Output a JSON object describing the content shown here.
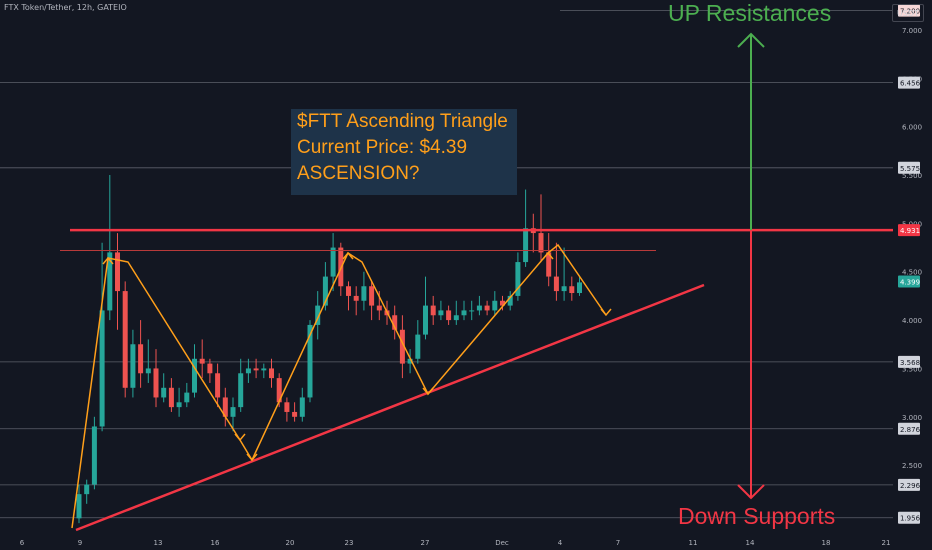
{
  "header": {
    "symbol": "FTX Token/Tether, 12h, GATEIO",
    "currency": "USDT"
  },
  "annotation": {
    "line1": "$FTT Ascending Triangle",
    "line2": "Current Price: $4.39",
    "line3": "ASCENSION?"
  },
  "labels": {
    "up": "UP Resistances",
    "down": "Down Supports"
  },
  "colors": {
    "bg": "#131722",
    "up": "#26a69a",
    "down": "#ef5350",
    "resistance": "#f23645",
    "orange": "#ff9f1a",
    "green": "#4caf50"
  },
  "chart_data": {
    "type": "candlestick",
    "symbol": "FTT/USDT",
    "timeframe": "12h",
    "exchange": "GATEIO",
    "xaxis_ticks": [
      "6",
      "9",
      "13",
      "16",
      "20",
      "23",
      "27",
      "Dec",
      "4",
      "7",
      "11",
      "14",
      "18",
      "21"
    ],
    "yaxis_ticks": [
      "2.500",
      "3.000",
      "3.500",
      "4.000",
      "4.500",
      "5.000",
      "5.500",
      "6.000",
      "6.500",
      "7.000"
    ],
    "ylim": [
      1.85,
      7.45
    ],
    "price_labels": [
      {
        "value": "7.200",
        "kind": "level"
      },
      {
        "value": "6.456",
        "kind": "level"
      },
      {
        "value": "5.575",
        "kind": "level"
      },
      {
        "value": "4.931",
        "kind": "resistance"
      },
      {
        "value": "4.399",
        "kind": "current"
      },
      {
        "value": "3.568",
        "kind": "level"
      },
      {
        "value": "2.876",
        "kind": "level"
      },
      {
        "value": "2.296",
        "kind": "level"
      },
      {
        "value": "1.956",
        "kind": "level"
      }
    ],
    "candles": [
      [
        1.95,
        2.2,
        1.9,
        2.3
      ],
      [
        2.2,
        2.3,
        2.1,
        2.35
      ],
      [
        2.3,
        2.9,
        2.25,
        3.0
      ],
      [
        2.9,
        4.1,
        2.85,
        4.8
      ],
      [
        4.1,
        4.7,
        4.0,
        5.5
      ],
      [
        4.7,
        4.3,
        3.9,
        4.9
      ],
      [
        4.3,
        3.3,
        3.2,
        4.4
      ],
      [
        3.3,
        3.75,
        3.2,
        3.9
      ],
      [
        3.75,
        3.45,
        3.3,
        4.0
      ],
      [
        3.45,
        3.5,
        3.35,
        3.8
      ],
      [
        3.5,
        3.2,
        3.1,
        3.7
      ],
      [
        3.2,
        3.3,
        3.15,
        3.45
      ],
      [
        3.3,
        3.1,
        3.05,
        3.4
      ],
      [
        3.1,
        3.15,
        3.0,
        3.3
      ],
      [
        3.15,
        3.25,
        3.1,
        3.35
      ],
      [
        3.25,
        3.6,
        3.2,
        3.75
      ],
      [
        3.6,
        3.55,
        3.4,
        3.8
      ],
      [
        3.55,
        3.45,
        3.35,
        3.6
      ],
      [
        3.45,
        3.2,
        3.1,
        3.55
      ],
      [
        3.2,
        3.0,
        2.9,
        3.3
      ],
      [
        3.0,
        3.1,
        2.85,
        3.2
      ],
      [
        3.1,
        3.45,
        3.05,
        3.6
      ],
      [
        3.45,
        3.5,
        3.35,
        3.6
      ],
      [
        3.5,
        3.48,
        3.4,
        3.6
      ],
      [
        3.48,
        3.5,
        3.4,
        3.55
      ],
      [
        3.5,
        3.4,
        3.3,
        3.6
      ],
      [
        3.4,
        3.15,
        3.1,
        3.45
      ],
      [
        3.15,
        3.05,
        2.95,
        3.2
      ],
      [
        3.05,
        3.0,
        2.95,
        3.15
      ],
      [
        3.0,
        3.2,
        2.95,
        3.3
      ],
      [
        3.2,
        3.95,
        3.15,
        4.0
      ],
      [
        3.95,
        4.15,
        3.8,
        4.3
      ],
      [
        4.15,
        4.45,
        4.1,
        4.6
      ],
      [
        4.45,
        4.75,
        4.3,
        4.9
      ],
      [
        4.75,
        4.35,
        4.25,
        4.8
      ],
      [
        4.35,
        4.25,
        4.1,
        4.4
      ],
      [
        4.25,
        4.2,
        4.05,
        4.35
      ],
      [
        4.2,
        4.35,
        4.1,
        4.5
      ],
      [
        4.35,
        4.15,
        4.0,
        4.4
      ],
      [
        4.15,
        4.1,
        4.0,
        4.3
      ],
      [
        4.1,
        4.05,
        3.95,
        4.2
      ],
      [
        4.05,
        3.9,
        3.8,
        4.15
      ],
      [
        3.9,
        3.55,
        3.4,
        4.05
      ],
      [
        3.55,
        3.6,
        3.45,
        3.7
      ],
      [
        3.6,
        3.85,
        3.55,
        4.0
      ],
      [
        3.85,
        4.15,
        3.8,
        4.45
      ],
      [
        4.15,
        4.05,
        3.95,
        4.25
      ],
      [
        4.05,
        4.1,
        4.0,
        4.2
      ],
      [
        4.1,
        4.0,
        3.95,
        4.15
      ],
      [
        4.0,
        4.05,
        3.95,
        4.2
      ],
      [
        4.05,
        4.1,
        4.0,
        4.2
      ],
      [
        4.1,
        4.1,
        4.0,
        4.2
      ],
      [
        4.1,
        4.15,
        4.05,
        4.25
      ],
      [
        4.15,
        4.1,
        4.05,
        4.2
      ],
      [
        4.1,
        4.2,
        4.05,
        4.3
      ],
      [
        4.2,
        4.15,
        4.1,
        4.25
      ],
      [
        4.15,
        4.25,
        4.1,
        4.3
      ],
      [
        4.25,
        4.6,
        4.2,
        4.7
      ],
      [
        4.6,
        4.95,
        4.55,
        5.35
      ],
      [
        4.95,
        4.9,
        4.7,
        5.1
      ],
      [
        4.9,
        4.7,
        4.6,
        5.3
      ],
      [
        4.7,
        4.45,
        4.35,
        4.9
      ],
      [
        4.45,
        4.3,
        4.2,
        4.8
      ],
      [
        4.3,
        4.35,
        4.2,
        4.75
      ],
      [
        4.35,
        4.28,
        4.2,
        4.45
      ],
      [
        4.28,
        4.39,
        4.25,
        4.45
      ]
    ]
  }
}
